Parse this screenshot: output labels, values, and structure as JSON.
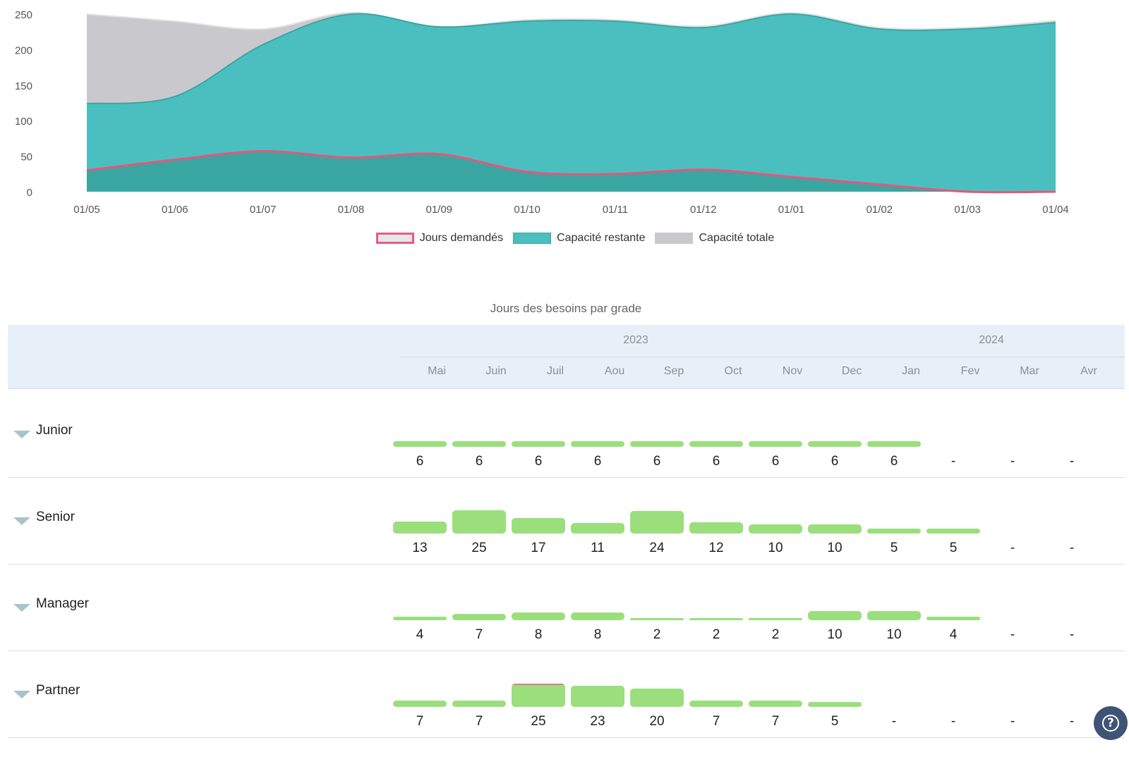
{
  "chart_data": {
    "type": "area",
    "x": [
      "01/05",
      "01/06",
      "01/07",
      "01/08",
      "01/09",
      "01/10",
      "01/11",
      "01/12",
      "01/01",
      "01/02",
      "01/03",
      "01/04"
    ],
    "ylim": [
      0,
      250
    ],
    "yticks": [
      "0",
      "50",
      "100",
      "150",
      "200",
      "250"
    ],
    "grid": false,
    "legend_position": "bottom",
    "series": [
      {
        "name": "Jours demandés",
        "values": [
          30,
          45,
          57,
          48,
          53,
          28,
          25,
          31,
          21,
          10,
          0,
          0
        ],
        "color": "#e8557a",
        "fill": "#3aa6a2"
      },
      {
        "name": "Capacité restante",
        "values": [
          124,
          134,
          207,
          250,
          232,
          240,
          240,
          231,
          250,
          229,
          229,
          238
        ],
        "color": "#4bbfc0"
      },
      {
        "name": "Capacité totale",
        "values": [
          250,
          240,
          229,
          252,
          232,
          242,
          242,
          233,
          252,
          231,
          231,
          241
        ],
        "color": "#c9c9cd"
      }
    ]
  },
  "legend": {
    "items": [
      {
        "label": "Jours demandés",
        "fill": "#e7e7e9",
        "border": "#ea5a82"
      },
      {
        "label": "Capacité restante",
        "fill": "#4bbfc0",
        "border": "#3aa6a2"
      },
      {
        "label": "Capacité totale",
        "fill": "#c9c9cd",
        "border": "#c9c9cd"
      }
    ]
  },
  "grades_table": {
    "title": "Jours des besoins par grade",
    "years": [
      {
        "label": "2023"
      },
      {
        "label": "2024"
      }
    ],
    "months": [
      "Mai",
      "Juin",
      "Juil",
      "Aou",
      "Sep",
      "Oct",
      "Nov",
      "Dec",
      "Jan",
      "Fev",
      "Mar",
      "Avr"
    ],
    "max_value": 25,
    "rows": [
      {
        "grade": "Junior",
        "values": [
          "6",
          "6",
          "6",
          "6",
          "6",
          "6",
          "6",
          "6",
          "6",
          "-",
          "-",
          "-"
        ]
      },
      {
        "grade": "Senior",
        "values": [
          "13",
          "25",
          "17",
          "11",
          "24",
          "12",
          "10",
          "10",
          "5",
          "5",
          "-",
          "-"
        ]
      },
      {
        "grade": "Manager",
        "values": [
          "4",
          "7",
          "8",
          "8",
          "2",
          "2",
          "2",
          "10",
          "10",
          "4",
          "-",
          "-"
        ]
      },
      {
        "grade": "Partner",
        "values": [
          "7",
          "7",
          "25",
          "23",
          "20",
          "7",
          "7",
          "5",
          "-",
          "-",
          "-",
          "-"
        ],
        "overflow": [
          0,
          0,
          3,
          0,
          0,
          0,
          0,
          0,
          0,
          0,
          0,
          0
        ]
      }
    ],
    "colors": {
      "bar": "#9bdf7c",
      "overflow": "#e6778e"
    }
  },
  "help": {
    "icon": "question-mark-icon",
    "label": "?"
  }
}
